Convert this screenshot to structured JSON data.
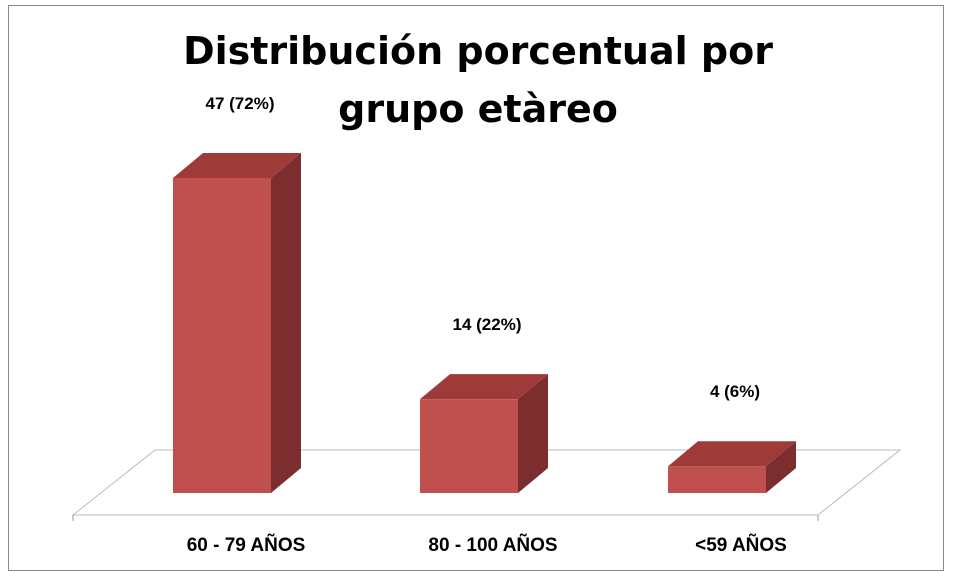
{
  "chart_data": {
    "type": "bar3d",
    "title": "Distribución porcentual por grupo etàreo",
    "categories": [
      "60 - 79 AÑOS",
      "80 - 100 AÑOS",
      "<59 AÑOS"
    ],
    "values": [
      47,
      14,
      4
    ],
    "value_labels": [
      "47 (72%)",
      "14 (22%)",
      "4 (6%)"
    ],
    "color": "#c0504d"
  }
}
